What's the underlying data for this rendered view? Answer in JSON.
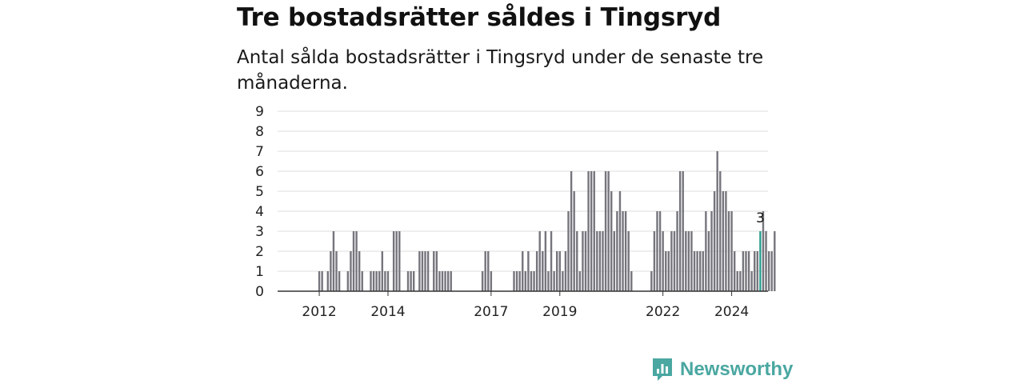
{
  "title": "Tre bostadsrätter såldes i Tingsryd",
  "subtitle": "Antal sålda bostadsrätter i Tingsryd under de senaste tre månaderna.",
  "logo": {
    "text": "Newsworthy",
    "icon": "newsworthy-chart-icon"
  },
  "colors": {
    "bar": "#75757d",
    "highlight": "#2a9d8f",
    "grid": "#dddddd",
    "axis": "#333333",
    "brand": "#4aa7a1"
  },
  "chart_data": {
    "type": "bar",
    "title": "Tre bostadsrätter såldes i Tingsryd",
    "ylim": [
      0,
      9
    ],
    "yticks": [
      0,
      1,
      2,
      3,
      4,
      5,
      6,
      7,
      8,
      9
    ],
    "xticks": [
      {
        "label": "2012",
        "index": 7
      },
      {
        "label": "2014",
        "index": 31
      },
      {
        "label": "2017",
        "index": 67
      },
      {
        "label": "2019",
        "index": 91
      },
      {
        "label": "2022",
        "index": 127
      },
      {
        "label": "2024",
        "index": 151
      }
    ],
    "highlight": {
      "index": 161,
      "value": 3,
      "label": "3"
    },
    "values": [
      0,
      0,
      0,
      0,
      0,
      0,
      0,
      1,
      1,
      0,
      1,
      2,
      3,
      2,
      1,
      0,
      0,
      1,
      2,
      3,
      3,
      2,
      1,
      0,
      0,
      1,
      1,
      1,
      1,
      2,
      1,
      1,
      0,
      3,
      3,
      3,
      0,
      0,
      1,
      1,
      1,
      0,
      2,
      2,
      2,
      2,
      0,
      2,
      2,
      1,
      1,
      1,
      1,
      1,
      0,
      0,
      0,
      0,
      0,
      0,
      0,
      0,
      0,
      0,
      1,
      2,
      2,
      1,
      0,
      0,
      0,
      0,
      0,
      0,
      0,
      1,
      1,
      1,
      2,
      1,
      2,
      1,
      1,
      2,
      3,
      2,
      3,
      1,
      3,
      1,
      2,
      2,
      1,
      2,
      4,
      6,
      5,
      3,
      1,
      3,
      3,
      6,
      6,
      6,
      3,
      3,
      3,
      6,
      6,
      5,
      3,
      4,
      5,
      4,
      4,
      3,
      1,
      0,
      0,
      0,
      0,
      0,
      0,
      1,
      3,
      4,
      4,
      3,
      2,
      2,
      3,
      3,
      4,
      6,
      6,
      3,
      3,
      3,
      2,
      2,
      2,
      2,
      4,
      3,
      4,
      5,
      7,
      6,
      5,
      5,
      4,
      4,
      2,
      1,
      1,
      2,
      2,
      2,
      1,
      2,
      2,
      3,
      4,
      3,
      2,
      2,
      3
    ]
  }
}
